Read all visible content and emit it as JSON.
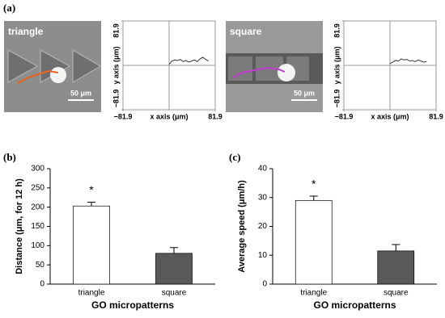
{
  "panel_labels": [
    "(a)",
    "(b)",
    "(c)"
  ],
  "images": [
    {
      "label": "triangle",
      "scale_bar": "50 μm"
    },
    {
      "label": "square",
      "scale_bar": "50 μm"
    }
  ],
  "chart_data": [
    {
      "type": "line",
      "xlabel": "x axis (μm)",
      "ylabel": "y axis (μm)",
      "xlim": [
        -81.9,
        81.9
      ],
      "ylim": [
        -81.9,
        81.9
      ],
      "xticks": [
        {
          "value": -81.9,
          "label": "−81.9"
        },
        81.9
      ],
      "yticks": [
        {
          "value": -81.9,
          "label": "−81.9"
        },
        81.9
      ],
      "x": [
        0,
        5,
        10,
        15,
        20,
        25,
        30,
        35,
        40,
        45,
        50,
        55,
        60,
        65,
        70
      ],
      "values": [
        2,
        8,
        10,
        9,
        11,
        7,
        9,
        6,
        8,
        10,
        7,
        12,
        15,
        11,
        8
      ],
      "color": "#333333"
    },
    {
      "type": "line",
      "xlabel": "x axis (μm)",
      "ylabel": "y axis (μm)",
      "xlim": [
        -81.9,
        81.9
      ],
      "ylim": [
        -81.9,
        81.9
      ],
      "xticks": [
        {
          "value": -81.9,
          "label": "−81.9"
        },
        81.9
      ],
      "yticks": [
        {
          "value": -81.9,
          "label": "−81.9"
        },
        81.9
      ],
      "x": [
        0,
        5,
        10,
        15,
        20,
        25,
        30,
        35,
        40,
        45,
        50,
        55,
        60,
        65
      ],
      "values": [
        3,
        6,
        9,
        8,
        12,
        10,
        11,
        8,
        9,
        7,
        10,
        8,
        6,
        7
      ],
      "color": "#333333"
    },
    {
      "type": "bar",
      "ylabel": "Distance (μm, for 12 h)",
      "xlabel": "GO micropatterns",
      "categories": [
        "triangle",
        "square"
      ],
      "values": [
        203,
        80
      ],
      "errors": [
        10,
        15
      ],
      "colors": [
        "#ffffff",
        "#595959"
      ],
      "annotation": "*",
      "ylim": [
        0,
        300
      ],
      "yticks": [
        0,
        50,
        100,
        150,
        200,
        250,
        300
      ]
    },
    {
      "type": "bar",
      "ylabel": "Average speed (μm/h)",
      "xlabel": "GO micropatterns",
      "categories": [
        "triangle",
        "square"
      ],
      "values": [
        29,
        11.5
      ],
      "errors": [
        1.5,
        2.2
      ],
      "colors": [
        "#ffffff",
        "#595959"
      ],
      "annotation": "*",
      "ylim": [
        0,
        40
      ],
      "yticks": [
        0,
        10,
        20,
        30,
        40
      ]
    }
  ]
}
